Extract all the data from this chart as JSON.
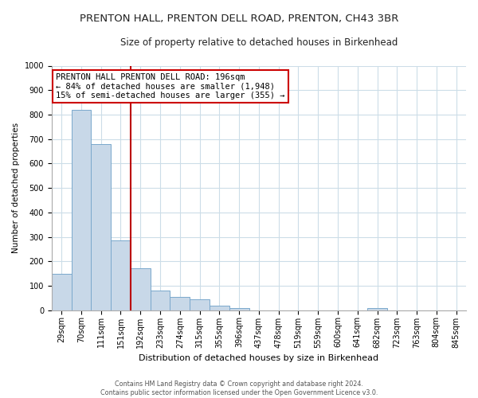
{
  "title": "PRENTON HALL, PRENTON DELL ROAD, PRENTON, CH43 3BR",
  "subtitle": "Size of property relative to detached houses in Birkenhead",
  "xlabel": "Distribution of detached houses by size in Birkenhead",
  "ylabel": "Number of detached properties",
  "bin_labels": [
    "29sqm",
    "70sqm",
    "111sqm",
    "151sqm",
    "192sqm",
    "233sqm",
    "274sqm",
    "315sqm",
    "355sqm",
    "396sqm",
    "437sqm",
    "478sqm",
    "519sqm",
    "559sqm",
    "600sqm",
    "641sqm",
    "682sqm",
    "723sqm",
    "763sqm",
    "804sqm",
    "845sqm"
  ],
  "bar_heights": [
    150,
    820,
    680,
    285,
    170,
    80,
    55,
    45,
    20,
    10,
    0,
    0,
    0,
    0,
    0,
    0,
    10,
    0,
    0,
    0,
    0
  ],
  "bar_color": "#c8d8e8",
  "bar_edgecolor": "#7aa8cc",
  "vline_x_index": 4,
  "vline_color": "#bb0000",
  "ylim": [
    0,
    1000
  ],
  "yticks": [
    0,
    100,
    200,
    300,
    400,
    500,
    600,
    700,
    800,
    900,
    1000
  ],
  "annotation_title": "PRENTON HALL PRENTON DELL ROAD: 196sqm",
  "annotation_line1": "← 84% of detached houses are smaller (1,948)",
  "annotation_line2": "15% of semi-detached houses are larger (355) →",
  "annotation_box_facecolor": "#ffffff",
  "annotation_box_edgecolor": "#cc0000",
  "footer1": "Contains HM Land Registry data © Crown copyright and database right 2024.",
  "footer2": "Contains public sector information licensed under the Open Government Licence v3.0.",
  "background_color": "#ffffff",
  "grid_color": "#ccdde8",
  "title_fontsize": 9.5,
  "subtitle_fontsize": 8.5,
  "xlabel_fontsize": 8,
  "ylabel_fontsize": 7.5,
  "tick_fontsize": 7,
  "annotation_fontsize": 7.5,
  "footer_fontsize": 5.8
}
